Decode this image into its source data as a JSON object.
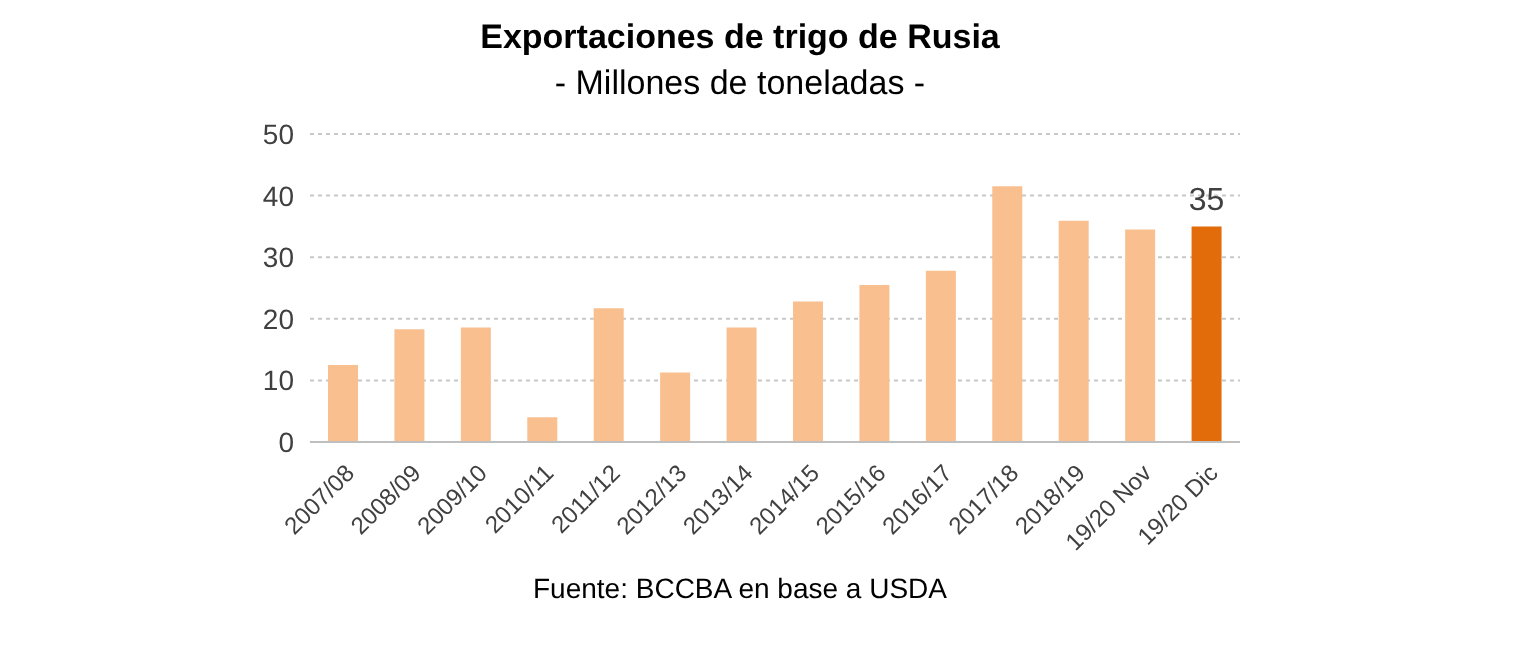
{
  "chart_data": {
    "type": "bar",
    "title": "Exportaciones de trigo de Rusia",
    "subtitle": "- Millones de toneladas -",
    "categories": [
      "2007/08",
      "2008/09",
      "2009/10",
      "2010/11",
      "2011/12",
      "2012/13",
      "2013/14",
      "2014/15",
      "2015/16",
      "2016/17",
      "2017/18",
      "2018/19",
      "19/20 Nov",
      "19/20 Dic"
    ],
    "values": [
      12.5,
      18.3,
      18.6,
      4.0,
      21.7,
      11.3,
      18.6,
      22.8,
      25.5,
      27.8,
      41.5,
      35.9,
      34.5,
      35
    ],
    "colors": [
      "#f9bf8f",
      "#f9bf8f",
      "#f9bf8f",
      "#f9bf8f",
      "#f9bf8f",
      "#f9bf8f",
      "#f9bf8f",
      "#f9bf8f",
      "#f9bf8f",
      "#f9bf8f",
      "#f9bf8f",
      "#f9bf8f",
      "#f9bf8f",
      "#e36c0a"
    ],
    "value_labels": [
      null,
      null,
      null,
      null,
      null,
      null,
      null,
      null,
      null,
      null,
      null,
      null,
      null,
      "35"
    ],
    "ylim": [
      0,
      50
    ],
    "yticks": [
      0,
      10,
      20,
      30,
      40,
      50
    ],
    "grid": "y",
    "annotations": [
      "Fuente: BCCBA en base a USDA"
    ]
  }
}
